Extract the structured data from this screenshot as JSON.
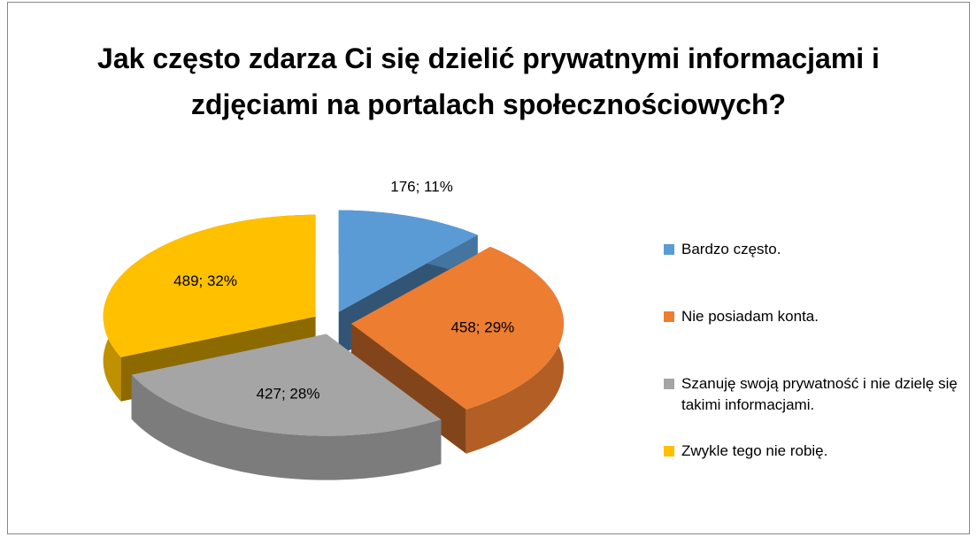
{
  "chart_data": {
    "type": "pie3d",
    "title": "Jak często zdarza Ci się dzielić prywatnymi informacjami i zdjęciami na portalach społecznościowych?",
    "categories": [
      "Bardzo często.",
      "Nie posiadam konta.",
      "Szanuję swoją prywatność i nie dzielę się takimi informacjami.",
      "Zwykle tego nie robię."
    ],
    "values": [
      176,
      458,
      427,
      489
    ],
    "value_labels": [
      "176; 11%",
      "458; 29%",
      "427; 28%",
      "489; 32%"
    ],
    "colors": [
      "#5b9bd5",
      "#ed7d31",
      "#a5a5a5",
      "#ffc000"
    ],
    "legend": "right"
  }
}
